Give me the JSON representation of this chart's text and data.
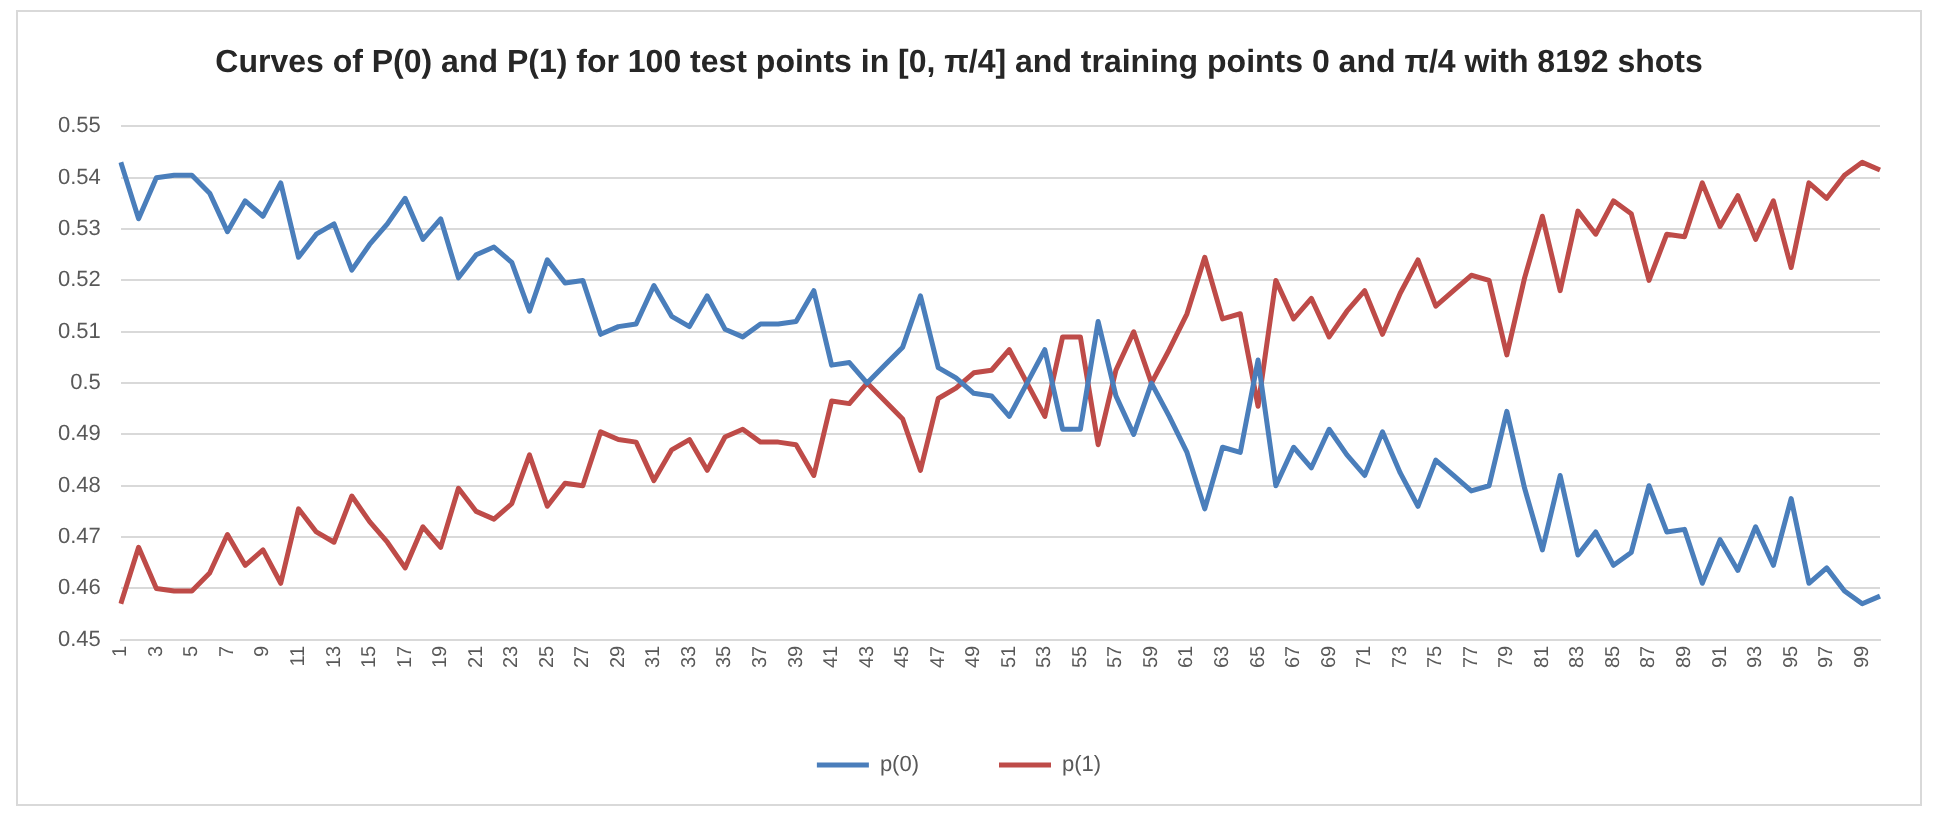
{
  "chart_data": {
    "type": "line",
    "title": "Curves of P(0) and P(1) for 100 test points in [0, π/4] and training points 0 and π/4 with 8192 shots",
    "categories": [
      "1",
      null,
      "3",
      null,
      "5",
      null,
      "7",
      null,
      "9",
      null,
      "11",
      null,
      "13",
      null,
      "15",
      null,
      "17",
      null,
      "19",
      null,
      "21",
      null,
      "23",
      null,
      "25",
      null,
      "27",
      null,
      "29",
      null,
      "31",
      null,
      "33",
      null,
      "35",
      null,
      "37",
      null,
      "39",
      null,
      "41",
      null,
      "43",
      null,
      "45",
      null,
      "47",
      null,
      "49",
      null,
      "51",
      null,
      "53",
      null,
      "55",
      null,
      "57",
      null,
      "59",
      null,
      "61",
      null,
      "63",
      null,
      "65",
      null,
      "67",
      null,
      "69",
      null,
      "71",
      null,
      "73",
      null,
      "75",
      null,
      "77",
      null,
      "79",
      null,
      "81",
      null,
      "83",
      null,
      "85",
      null,
      "87",
      null,
      "89",
      null,
      "91",
      null,
      "93",
      null,
      "95",
      null,
      "97",
      null,
      "99",
      null
    ],
    "series": [
      {
        "name": "p(0)",
        "color": "#4a7ebb",
        "values": [
          0.543,
          0.532,
          0.54,
          0.5405,
          0.5405,
          0.537,
          0.5295,
          0.5355,
          0.5325,
          0.539,
          0.5245,
          0.529,
          0.531,
          0.522,
          0.527,
          0.531,
          0.536,
          0.528,
          0.532,
          0.5205,
          0.525,
          0.5265,
          0.5235,
          0.514,
          0.524,
          0.5195,
          0.52,
          0.5095,
          0.511,
          0.5115,
          0.519,
          0.513,
          0.511,
          0.517,
          0.5105,
          0.509,
          0.5115,
          0.5115,
          0.512,
          0.518,
          0.5035,
          0.504,
          0.5,
          0.5035,
          0.507,
          0.517,
          0.503,
          0.501,
          0.498,
          0.4975,
          0.4935,
          0.5,
          0.5065,
          0.491,
          0.491,
          0.512,
          0.4975,
          0.49,
          0.5,
          0.4935,
          0.4865,
          0.4755,
          0.4875,
          0.4865,
          0.5045,
          0.48,
          0.4875,
          0.4835,
          0.491,
          0.486,
          0.482,
          0.4905,
          0.4825,
          0.476,
          0.485,
          0.482,
          0.479,
          0.48,
          0.4945,
          0.4795,
          0.4675,
          0.482,
          0.4665,
          0.471,
          0.4645,
          0.467,
          0.48,
          0.471,
          0.4715,
          0.461,
          0.4695,
          0.4635,
          0.472,
          0.4645,
          0.4775,
          0.461,
          0.464,
          0.4595,
          0.457,
          0.4585
        ]
      },
      {
        "name": "p(1)",
        "color": "#be4b48",
        "values": [
          0.457,
          0.468,
          0.46,
          0.4595,
          0.4595,
          0.463,
          0.4705,
          0.4645,
          0.4675,
          0.461,
          0.4755,
          0.471,
          0.469,
          0.478,
          0.473,
          0.469,
          0.464,
          0.472,
          0.468,
          0.4795,
          0.475,
          0.4735,
          0.4765,
          0.486,
          0.476,
          0.4805,
          0.48,
          0.4905,
          0.489,
          0.4885,
          0.481,
          0.487,
          0.489,
          0.483,
          0.4895,
          0.491,
          0.4885,
          0.4885,
          0.488,
          0.482,
          0.4965,
          0.496,
          0.5,
          0.4965,
          0.493,
          0.483,
          0.497,
          0.499,
          0.502,
          0.5025,
          0.5065,
          0.5,
          0.4935,
          0.509,
          0.509,
          0.488,
          0.5025,
          0.51,
          0.5,
          0.5065,
          0.5135,
          0.5245,
          0.5125,
          0.5135,
          0.4955,
          0.52,
          0.5125,
          0.5165,
          0.509,
          0.514,
          0.518,
          0.5095,
          0.5175,
          0.524,
          0.515,
          0.518,
          0.521,
          0.52,
          0.5055,
          0.5205,
          0.5325,
          0.518,
          0.5335,
          0.529,
          0.5355,
          0.533,
          0.52,
          0.529,
          0.5285,
          0.539,
          0.5305,
          0.5365,
          0.528,
          0.5355,
          0.5225,
          0.539,
          0.536,
          0.5405,
          0.543,
          0.5415
        ]
      }
    ],
    "ylim": [
      0.45,
      0.55
    ],
    "yticks": [
      0.45,
      0.46,
      0.47,
      0.48,
      0.49,
      0.5,
      0.51,
      0.52,
      0.53,
      0.54,
      0.55
    ],
    "grid": "y",
    "legend": "bottom",
    "marker": "none",
    "line_style": "solid"
  }
}
